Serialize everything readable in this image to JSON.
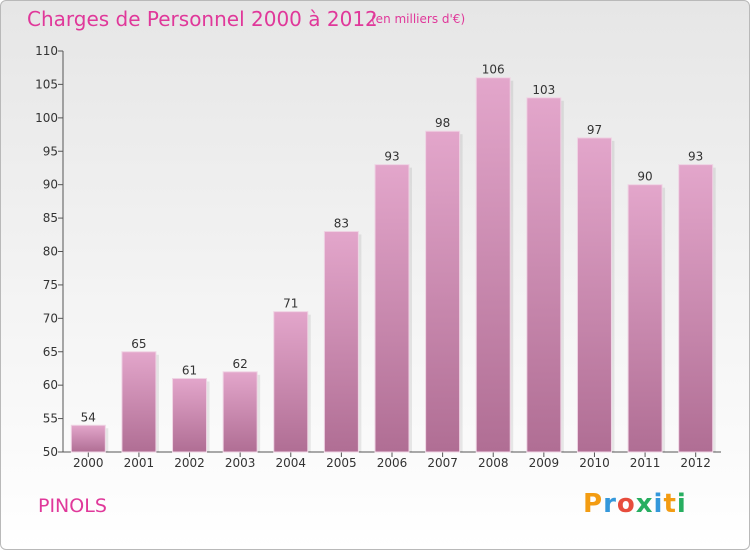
{
  "title": "Charges de Personnel 2000 à 2012",
  "subtitle": "(en milliers d'€)",
  "place": "PINOLS",
  "logo": {
    "text": "Proxiti",
    "letter_colors": [
      "#f39c12",
      "#3498db",
      "#e74c3c",
      "#27ae60",
      "#3498db",
      "#f39c12",
      "#27ae60"
    ]
  },
  "colors": {
    "title": "#e0389a",
    "bar_top": "#e3a6cb",
    "bar_bottom": "#b06e94"
  },
  "chart_data": {
    "type": "bar",
    "title": "Charges de Personnel 2000 à 2012",
    "subtitle": "(en milliers d'€)",
    "xlabel": "",
    "ylabel": "",
    "categories": [
      "2000",
      "2001",
      "2002",
      "2003",
      "2004",
      "2005",
      "2006",
      "2007",
      "2008",
      "2009",
      "2010",
      "2011",
      "2012"
    ],
    "values": [
      54,
      65,
      61,
      62,
      71,
      83,
      93,
      98,
      106,
      103,
      97,
      90,
      93
    ],
    "ylim": [
      50,
      110
    ],
    "yticks": [
      50,
      55,
      60,
      65,
      70,
      75,
      80,
      85,
      90,
      95,
      100,
      105,
      110
    ],
    "grid": false,
    "legend": "none"
  }
}
